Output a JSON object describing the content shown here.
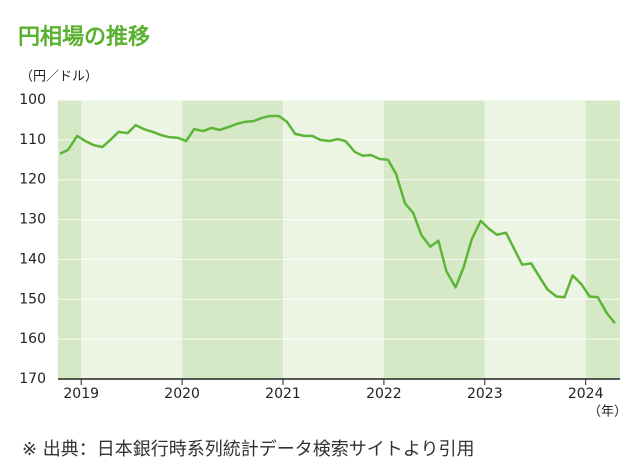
{
  "chart_data": {
    "type": "line",
    "title": "円相場の推移",
    "y_unit": "（円／ドル）",
    "x_unit": "（年）",
    "source": "※ 出典：日本銀行時系列統計データ検索サイトより引用",
    "x": [
      2018.79,
      2018.87,
      2018.96,
      2019.04,
      2019.12,
      2019.21,
      2019.29,
      2019.37,
      2019.46,
      2019.54,
      2019.62,
      2019.71,
      2019.79,
      2019.87,
      2019.96,
      2020.04,
      2020.12,
      2020.21,
      2020.29,
      2020.37,
      2020.46,
      2020.54,
      2020.62,
      2020.71,
      2020.79,
      2020.87,
      2020.96,
      2021.04,
      2021.12,
      2021.21,
      2021.29,
      2021.37,
      2021.46,
      2021.54,
      2021.62,
      2021.71,
      2021.79,
      2021.87,
      2021.96,
      2022.04,
      2022.12,
      2022.21,
      2022.29,
      2022.37,
      2022.46,
      2022.54,
      2022.62,
      2022.71,
      2022.79,
      2022.87,
      2022.96,
      2023.04,
      2023.12,
      2023.21,
      2023.29,
      2023.37,
      2023.46,
      2023.54,
      2023.62,
      2023.71,
      2023.79,
      2023.87,
      2023.96,
      2024.04,
      2024.12,
      2024.21,
      2024.29
    ],
    "series": [
      {
        "name": "円相場",
        "color": "#5db537",
        "values": [
          113.5,
          112.5,
          109,
          110.3,
          111.3,
          111.8,
          110,
          108,
          108.3,
          106.3,
          107.3,
          108,
          108.8,
          109.3,
          109.5,
          110.3,
          107.3,
          107.8,
          107,
          107.5,
          106.8,
          106,
          105.5,
          105.3,
          104.5,
          104,
          104,
          105.5,
          108.5,
          109,
          109,
          110,
          110.3,
          109.8,
          110.3,
          113,
          114,
          113.8,
          114.8,
          115,
          118.5,
          126,
          128.3,
          133.8,
          136.8,
          135.3,
          143,
          147,
          142,
          135,
          130.3,
          132.3,
          133.8,
          133.3,
          137.3,
          141.3,
          141,
          144.3,
          147.5,
          149.3,
          149.5,
          144,
          146.3,
          149.3,
          149.5,
          153.5,
          156
        ]
      }
    ],
    "xlim": [
      2018.77,
      2024.34
    ],
    "xticks": [
      2019,
      2020,
      2021,
      2022,
      2023,
      2024
    ],
    "ylim": [
      100,
      170
    ],
    "yticks": [
      100,
      110,
      120,
      130,
      140,
      150,
      160,
      170
    ],
    "y_inverted": true,
    "band_colors": [
      "#d6e9c6",
      "#ecf5e4"
    ],
    "grid": true,
    "grid_color": "#ffffff",
    "title_color": "#5ab031"
  }
}
